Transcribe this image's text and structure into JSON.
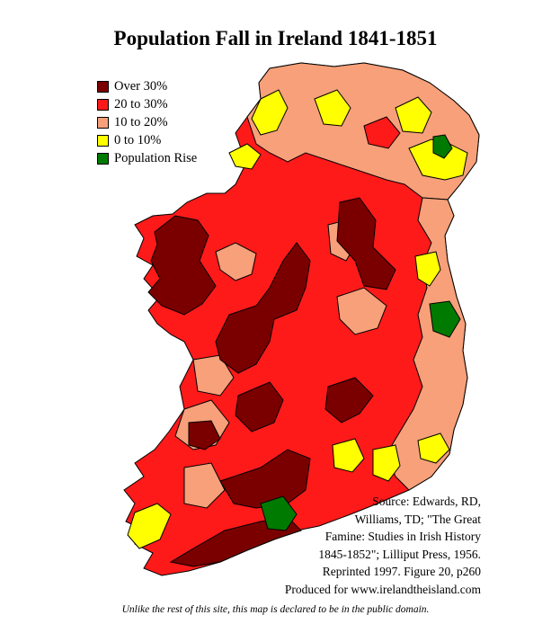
{
  "title": "Population Fall in Ireland 1841-1851",
  "legend": [
    {
      "label": "Over 30%",
      "color": "#7a0000"
    },
    {
      "label": "20 to 30%",
      "color": "#ff1a1a"
    },
    {
      "label": "10 to 20%",
      "color": "#f7a07a"
    },
    {
      "label": "0 to 10%",
      "color": "#ffff00"
    },
    {
      "label": "Population Rise",
      "color": "#007a00"
    }
  ],
  "source_lines": [
    "Source: Edwards, RD,",
    "Williams, TD; \"The Great",
    "Famine: Studies in Irish History",
    "1845-1852\"; Lilliput Press, 1956.",
    "Reprinted 1997. Figure 20, p260",
    "Produced for www.irelandtheisland.com"
  ],
  "footer": "Unlike the rest of this site, this map is declared to be in the public domain."
}
